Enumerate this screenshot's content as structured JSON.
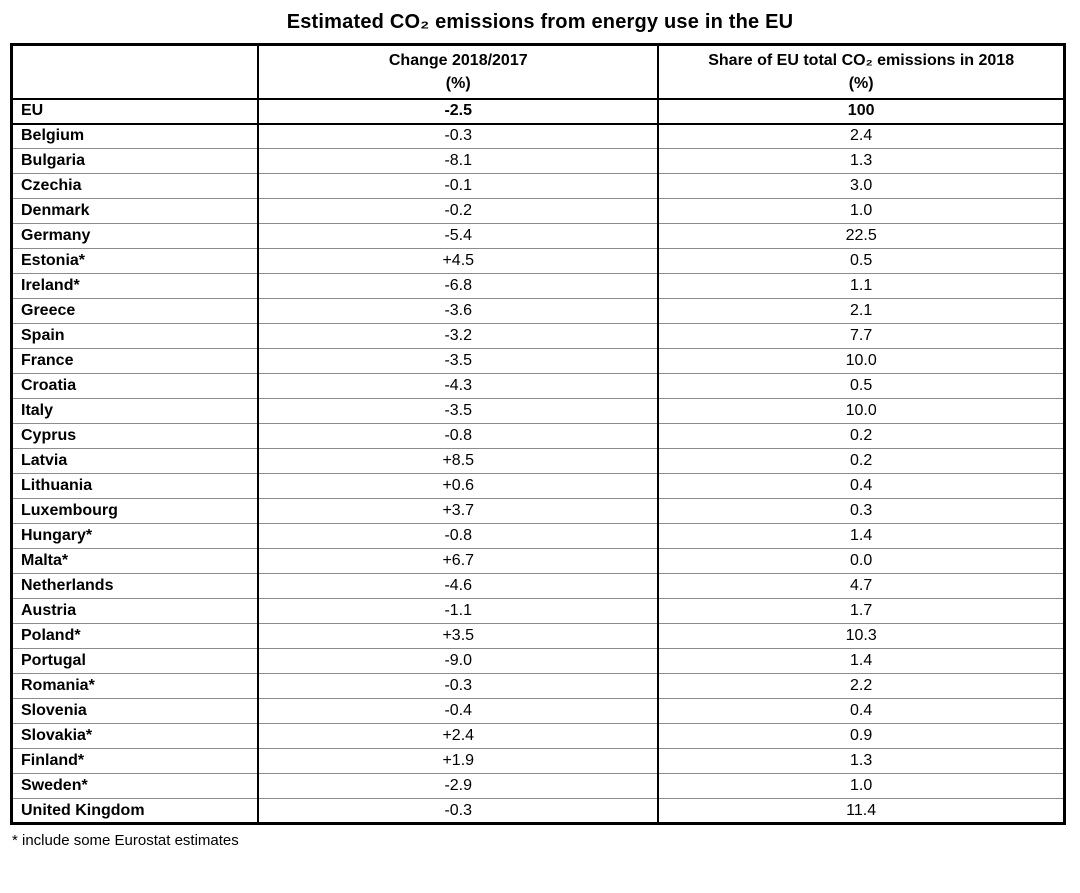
{
  "page": {
    "title": "Estimated CO₂ emissions from energy use in the EU",
    "footnote": "* include some Eurostat estimates"
  },
  "table": {
    "header": {
      "country_col": "",
      "change_label": "Change 2018/2017",
      "change_unit": "(%)",
      "share_label": "Share of EU total CO₂ emissions in 2018",
      "share_unit": "(%)"
    }
  },
  "colors": {
    "background": "#ffffff",
    "text": "#000000",
    "outer_border": "#000000",
    "row_divider": "#8c8c8c"
  },
  "chart_data": {
    "type": "table",
    "title": "Estimated CO₂ emissions from energy use in the EU",
    "columns": [
      "",
      "Change 2018/2017 (%)",
      "Share of EU total CO₂ emissions in 2018 (%)"
    ],
    "footnote": "* include some Eurostat estimates",
    "rows": [
      {
        "name": "EU",
        "change": "-2.5",
        "share": "100",
        "is_total": true
      },
      {
        "name": "Belgium",
        "change": "-0.3",
        "share": "2.4"
      },
      {
        "name": "Bulgaria",
        "change": "-8.1",
        "share": "1.3"
      },
      {
        "name": "Czechia",
        "change": "-0.1",
        "share": "3.0"
      },
      {
        "name": "Denmark",
        "change": "-0.2",
        "share": "1.0"
      },
      {
        "name": "Germany",
        "change": "-5.4",
        "share": "22.5"
      },
      {
        "name": "Estonia*",
        "change": "+4.5",
        "share": "0.5"
      },
      {
        "name": "Ireland*",
        "change": "-6.8",
        "share": "1.1"
      },
      {
        "name": "Greece",
        "change": "-3.6",
        "share": "2.1"
      },
      {
        "name": "Spain",
        "change": "-3.2",
        "share": "7.7"
      },
      {
        "name": "France",
        "change": "-3.5",
        "share": "10.0"
      },
      {
        "name": "Croatia",
        "change": "-4.3",
        "share": "0.5"
      },
      {
        "name": "Italy",
        "change": "-3.5",
        "share": "10.0"
      },
      {
        "name": "Cyprus",
        "change": "-0.8",
        "share": "0.2"
      },
      {
        "name": "Latvia",
        "change": "+8.5",
        "share": "0.2"
      },
      {
        "name": "Lithuania",
        "change": "+0.6",
        "share": "0.4"
      },
      {
        "name": "Luxembourg",
        "change": "+3.7",
        "share": "0.3"
      },
      {
        "name": "Hungary*",
        "change": "-0.8",
        "share": "1.4"
      },
      {
        "name": "Malta*",
        "change": "+6.7",
        "share": "0.0"
      },
      {
        "name": "Netherlands",
        "change": "-4.6",
        "share": "4.7"
      },
      {
        "name": "Austria",
        "change": "-1.1",
        "share": "1.7"
      },
      {
        "name": "Poland*",
        "change": "+3.5",
        "share": "10.3"
      },
      {
        "name": "Portugal",
        "change": "-9.0",
        "share": "1.4"
      },
      {
        "name": "Romania*",
        "change": "-0.3",
        "share": "2.2"
      },
      {
        "name": "Slovenia",
        "change": "-0.4",
        "share": "0.4"
      },
      {
        "name": "Slovakia*",
        "change": "+2.4",
        "share": "0.9"
      },
      {
        "name": "Finland*",
        "change": "+1.9",
        "share": "1.3"
      },
      {
        "name": "Sweden*",
        "change": "-2.9",
        "share": "1.0"
      },
      {
        "name": "United Kingdom",
        "change": "-0.3",
        "share": "11.4"
      }
    ]
  }
}
